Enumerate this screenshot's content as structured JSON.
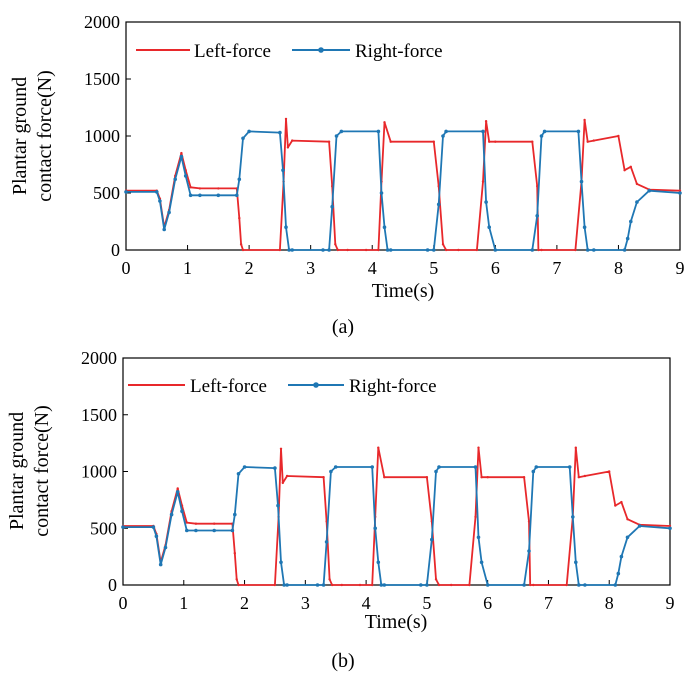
{
  "charts": [
    {
      "panel": "a",
      "caption": "(a)",
      "xlabel": "Time(s)",
      "ylabel": [
        "Plantar ground",
        "contact force(N)"
      ],
      "yticks": [
        "0",
        "500",
        "1000",
        "1500",
        "2000"
      ],
      "xticks": [
        "0",
        "1",
        "2",
        "3",
        "4",
        "5",
        "6",
        "7",
        "8",
        "9"
      ],
      "legend": [
        "Left-force",
        "Right-force"
      ]
    },
    {
      "panel": "b",
      "caption": "(b)",
      "xlabel": "Time(s)",
      "ylabel": [
        "Plantar ground",
        "contact force(N)"
      ],
      "yticks": [
        "0",
        "500",
        "1000",
        "1500",
        "2000"
      ],
      "xticks": [
        "0",
        "1",
        "2",
        "3",
        "4",
        "5",
        "6",
        "7",
        "8",
        "9"
      ],
      "legend": [
        "Left-force",
        "Right-force"
      ]
    }
  ],
  "colors": {
    "left": "#e8282b",
    "right": "#1f77b4"
  },
  "chart_data": [
    {
      "type": "line",
      "xlim": [
        0,
        9
      ],
      "ylim": [
        0,
        2000
      ],
      "grid": false,
      "legend_position": "top-left",
      "series": [
        {
          "name": "Left-force",
          "x": [
            0,
            0.5,
            0.55,
            0.62,
            0.7,
            0.8,
            0.9,
            0.97,
            1.05,
            1.2,
            1.5,
            1.8,
            1.84,
            1.87,
            1.9,
            2.5,
            2.56,
            2.6,
            2.63,
            2.7,
            3.3,
            3.35,
            3.4,
            3.44,
            3.6,
            3.9,
            4.1,
            4.15,
            4.2,
            4.3,
            5.0,
            5.08,
            5.15,
            5.2,
            5.4,
            5.7,
            5.8,
            5.85,
            5.9,
            6.0,
            6.6,
            6.68,
            6.7,
            6.75,
            7.3,
            7.4,
            7.45,
            7.5,
            7.6,
            8.0,
            8.1,
            8.2,
            8.3,
            8.5,
            9.0
          ],
          "y": [
            520,
            520,
            450,
            200,
            350,
            650,
            850,
            700,
            550,
            540,
            540,
            540,
            280,
            50,
            0,
            0,
            600,
            1150,
            900,
            960,
            950,
            560,
            50,
            0,
            0,
            0,
            0,
            600,
            1120,
            950,
            950,
            560,
            50,
            0,
            0,
            0,
            600,
            1130,
            950,
            950,
            950,
            560,
            0,
            0,
            0,
            600,
            1140,
            950,
            960,
            1000,
            700,
            730,
            580,
            530,
            520
          ]
        },
        {
          "name": "Right-force",
          "x": [
            0,
            0.5,
            0.55,
            0.62,
            0.7,
            0.8,
            0.9,
            0.97,
            1.05,
            1.2,
            1.5,
            1.8,
            1.84,
            1.9,
            2.0,
            2.5,
            2.55,
            2.6,
            2.65,
            2.7,
            3.2,
            3.3,
            3.35,
            3.42,
            3.5,
            4.1,
            4.15,
            4.2,
            4.25,
            4.3,
            4.9,
            5.0,
            5.08,
            5.15,
            5.2,
            5.8,
            5.85,
            5.9,
            6.0,
            6.6,
            6.68,
            6.75,
            6.8,
            7.35,
            7.4,
            7.45,
            7.5,
            7.6,
            8.1,
            8.15,
            8.2,
            8.3,
            8.5,
            9.0
          ],
          "y": [
            510,
            510,
            430,
            180,
            330,
            620,
            820,
            650,
            480,
            480,
            480,
            480,
            620,
            980,
            1040,
            1030,
            700,
            200,
            0,
            0,
            0,
            0,
            380,
            1000,
            1040,
            1040,
            500,
            200,
            0,
            0,
            0,
            0,
            400,
            1000,
            1040,
            1040,
            420,
            200,
            0,
            0,
            300,
            1000,
            1040,
            1040,
            600,
            200,
            0,
            0,
            0,
            100,
            250,
            420,
            520,
            500
          ]
        }
      ]
    },
    {
      "type": "line",
      "xlim": [
        0,
        9
      ],
      "ylim": [
        0,
        2000
      ],
      "grid": false,
      "legend_position": "top-left",
      "series": [
        {
          "name": "Left-force",
          "x": [
            0,
            0.5,
            0.55,
            0.62,
            0.7,
            0.8,
            0.9,
            0.97,
            1.05,
            1.2,
            1.5,
            1.8,
            1.84,
            1.87,
            1.9,
            2.5,
            2.56,
            2.6,
            2.63,
            2.7,
            3.3,
            3.35,
            3.4,
            3.44,
            3.6,
            3.9,
            4.1,
            4.15,
            4.2,
            4.3,
            5.0,
            5.08,
            5.15,
            5.2,
            5.4,
            5.7,
            5.8,
            5.85,
            5.9,
            6.0,
            6.6,
            6.68,
            6.7,
            6.75,
            7.3,
            7.4,
            7.45,
            7.5,
            7.6,
            8.0,
            8.1,
            8.2,
            8.3,
            8.5,
            9.0
          ],
          "y": [
            520,
            520,
            450,
            200,
            350,
            650,
            850,
            700,
            550,
            540,
            540,
            540,
            280,
            50,
            0,
            0,
            600,
            1200,
            900,
            960,
            950,
            560,
            50,
            0,
            0,
            0,
            0,
            600,
            1210,
            950,
            950,
            560,
            50,
            0,
            0,
            0,
            600,
            1210,
            950,
            950,
            950,
            560,
            0,
            0,
            0,
            600,
            1210,
            950,
            960,
            1000,
            700,
            730,
            580,
            530,
            520
          ]
        },
        {
          "name": "Right-force",
          "x": [
            0,
            0.5,
            0.55,
            0.62,
            0.7,
            0.8,
            0.9,
            0.97,
            1.05,
            1.2,
            1.5,
            1.8,
            1.84,
            1.9,
            2.0,
            2.5,
            2.55,
            2.6,
            2.65,
            2.7,
            3.2,
            3.3,
            3.35,
            3.42,
            3.5,
            4.1,
            4.15,
            4.2,
            4.25,
            4.3,
            4.9,
            5.0,
            5.08,
            5.15,
            5.2,
            5.8,
            5.85,
            5.9,
            6.0,
            6.6,
            6.68,
            6.75,
            6.8,
            7.35,
            7.4,
            7.45,
            7.5,
            7.6,
            8.1,
            8.15,
            8.2,
            8.3,
            8.5,
            9.0
          ],
          "y": [
            510,
            510,
            430,
            180,
            330,
            620,
            820,
            650,
            480,
            480,
            480,
            480,
            620,
            980,
            1040,
            1030,
            700,
            200,
            0,
            0,
            0,
            0,
            380,
            1000,
            1040,
            1040,
            500,
            200,
            0,
            0,
            0,
            0,
            400,
            1000,
            1040,
            1040,
            420,
            200,
            0,
            0,
            300,
            1000,
            1040,
            1040,
            600,
            200,
            0,
            0,
            0,
            100,
            250,
            420,
            520,
            500
          ]
        }
      ]
    }
  ]
}
